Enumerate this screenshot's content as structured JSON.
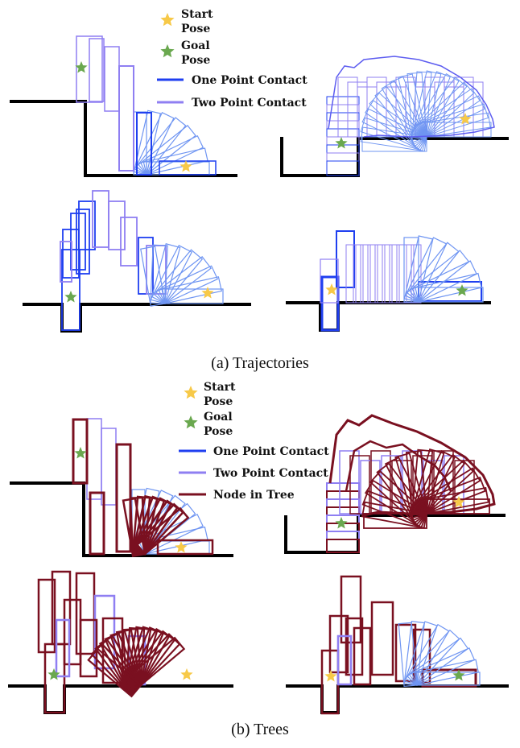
{
  "colors": {
    "one_point": "#1f3ff0",
    "two_point": "#8f7ff2",
    "fan": "#6f95f2",
    "node": "#7a1020",
    "wall": "#000000",
    "start_star": "#f7c948",
    "goal_star": "#6aa84f"
  },
  "legend_a": {
    "start_label": "Start",
    "start_label2": "Pose",
    "goal_label": "Goal",
    "goal_label2": "Pose",
    "one_point": "One Point Contact",
    "two_point": "Two Point Contact"
  },
  "legend_b": {
    "start_label": "Start",
    "start_label2": "Pose",
    "goal_label": "Goal",
    "goal_label2": "Pose",
    "one_point": "One Point Contact",
    "two_point": "Two Point Contact",
    "node": "Node in Tree"
  },
  "captions": {
    "a": "(a)  Trajectories",
    "b": "(b)  Trees"
  }
}
